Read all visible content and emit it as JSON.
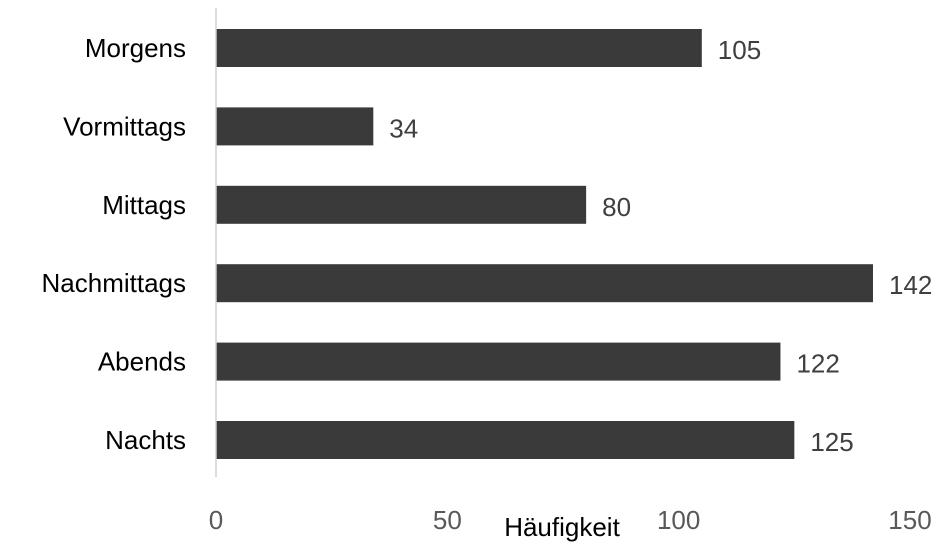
{
  "colors": {
    "bar": "#3a3a3a",
    "text": "#000000",
    "value_label": "#3f3f3f",
    "tick_label": "#595959",
    "axis_line": "#d0d0d0"
  },
  "chart_data": {
    "type": "bar",
    "orientation": "horizontal",
    "categories": [
      "Morgens",
      "Vormittags",
      "Mittags",
      "Nachmittags",
      "Abends",
      "Nachts"
    ],
    "values": [
      105,
      34,
      80,
      142,
      122,
      125
    ],
    "title": "",
    "xlabel": "Häufigkeit",
    "ylabel": "",
    "xlim": [
      0,
      150
    ],
    "xticks": [
      0,
      50,
      100,
      150
    ],
    "grid": false,
    "legend": "none",
    "data_labels": true
  }
}
